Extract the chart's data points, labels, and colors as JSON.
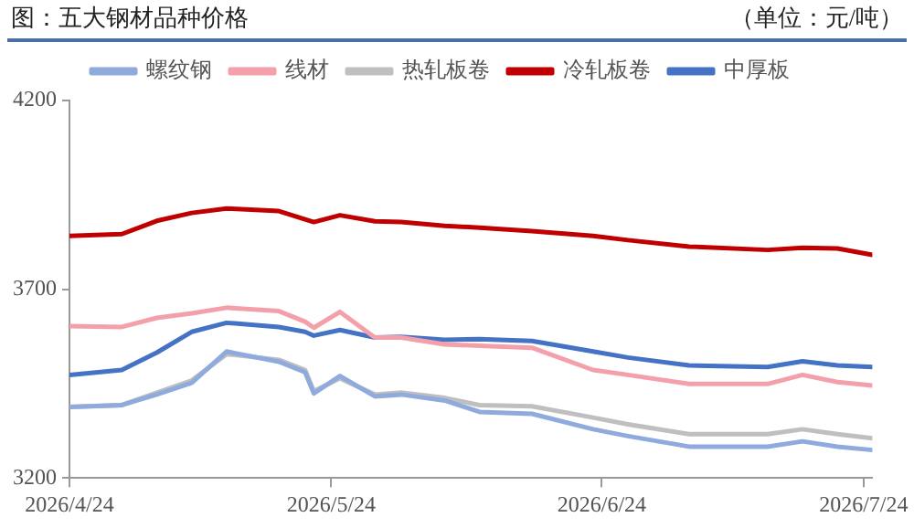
{
  "chart_data": {
    "type": "line",
    "title": "图：五大钢材品种价格",
    "subtitle": "（单位：元/吨）",
    "x": [
      "2026-04-24",
      "2026-04-30",
      "2026-05-04",
      "2026-05-08",
      "2026-05-12",
      "2026-05-18",
      "2026-05-21",
      "2026-05-22",
      "2026-05-25",
      "2026-05-29",
      "2026-06-01",
      "2026-06-06",
      "2026-06-10",
      "2026-06-16",
      "2026-06-23",
      "2026-06-27",
      "2026-07-04",
      "2026-07-13",
      "2026-07-17",
      "2026-07-21",
      "2026-07-25"
    ],
    "series": [
      {
        "name": "螺纹钢",
        "color": "#8faadc",
        "values": [
          3388,
          3393,
          3421,
          3452,
          3535,
          3508,
          3480,
          3424,
          3470,
          3416,
          3421,
          3405,
          3375,
          3370,
          3329,
          3311,
          3283,
          3283,
          3297,
          3283,
          3274
        ]
      },
      {
        "name": "线材",
        "color": "#f4a0aa",
        "values": [
          3602,
          3600,
          3624,
          3636,
          3651,
          3642,
          3614,
          3598,
          3640,
          3572,
          3572,
          3554,
          3550,
          3545,
          3486,
          3473,
          3449,
          3449,
          3473,
          3454,
          3445
        ]
      },
      {
        "name": "热轧板卷",
        "color": "#bfbfbf",
        "values": [
          3388,
          3393,
          3426,
          3458,
          3528,
          3513,
          3486,
          3430,
          3464,
          3421,
          3426,
          3412,
          3393,
          3390,
          3360,
          3342,
          3316,
          3316,
          3329,
          3316,
          3305
        ]
      },
      {
        "name": "冷轧板卷",
        "color": "#c00000",
        "values": [
          3841,
          3846,
          3881,
          3902,
          3914,
          3907,
          3885,
          3878,
          3896,
          3880,
          3878,
          3868,
          3863,
          3854,
          3841,
          3830,
          3813,
          3804,
          3810,
          3808,
          3791
        ]
      },
      {
        "name": "中厚板",
        "color": "#4472c4",
        "values": [
          3473,
          3486,
          3532,
          3587,
          3611,
          3600,
          3587,
          3577,
          3592,
          3572,
          3574,
          3566,
          3568,
          3563,
          3535,
          3519,
          3498,
          3494,
          3509,
          3498,
          3494
        ]
      }
    ],
    "xlim": [
      "2026-04-24",
      "2026-07-25"
    ],
    "xticks": [
      {
        "value": "2026-04-24",
        "label": "2026/4/24"
      },
      {
        "value": "2026-05-24",
        "label": "2026/5/24"
      },
      {
        "value": "2026-06-24",
        "label": "2026/6/24"
      },
      {
        "value": "2026-07-24",
        "label": "2026/7/24"
      }
    ],
    "ylim": [
      3200,
      4200
    ],
    "yticks": [
      3200,
      3700,
      4200
    ],
    "legend": "top",
    "marker": "none",
    "line_style": "solid"
  }
}
